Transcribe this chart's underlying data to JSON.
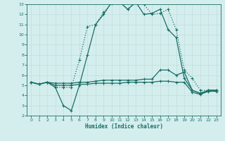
{
  "xlabel": "Humidex (Indice chaleur)",
  "bg_color": "#d4eeee",
  "line_color": "#1a6e64",
  "grid_color": "#b8d8d8",
  "xlim": [
    -0.5,
    23.5
  ],
  "ylim": [
    2,
    13
  ],
  "xticks": [
    0,
    1,
    2,
    3,
    4,
    5,
    6,
    7,
    8,
    9,
    10,
    11,
    12,
    13,
    14,
    15,
    16,
    17,
    18,
    19,
    20,
    21,
    22,
    23
  ],
  "yticks": [
    2,
    3,
    4,
    5,
    6,
    7,
    8,
    9,
    10,
    11,
    12,
    13
  ],
  "series": [
    {
      "x": [
        0,
        1,
        2,
        3,
        4,
        5,
        6,
        7,
        8,
        9,
        10,
        11,
        12,
        13,
        14,
        15,
        16,
        17,
        18,
        19,
        20,
        21,
        22,
        23
      ],
      "y": [
        5.3,
        5.1,
        5.3,
        4.8,
        4.8,
        4.8,
        7.5,
        10.8,
        11.0,
        12.2,
        13.1,
        13.2,
        12.5,
        13.2,
        13.0,
        12.0,
        12.1,
        12.5,
        10.5,
        6.5,
        5.7,
        4.5,
        4.5,
        4.5
      ],
      "style": ":",
      "marker": "+",
      "markersize": 3,
      "linewidth": 0.9
    },
    {
      "x": [
        0,
        1,
        2,
        3,
        4,
        5,
        6,
        7,
        8,
        9,
        10,
        11,
        12,
        13,
        14,
        15,
        16,
        17,
        18,
        19,
        20,
        21,
        22,
        23
      ],
      "y": [
        5.3,
        5.1,
        5.3,
        4.8,
        3.0,
        2.5,
        5.0,
        8.0,
        11.0,
        12.0,
        13.2,
        13.2,
        12.5,
        13.2,
        12.0,
        12.1,
        12.5,
        10.5,
        9.7,
        5.7,
        4.5,
        4.2,
        4.5,
        4.5
      ],
      "style": "-",
      "marker": "+",
      "markersize": 3,
      "linewidth": 0.9
    },
    {
      "x": [
        0,
        1,
        2,
        3,
        4,
        5,
        6,
        7,
        8,
        9,
        10,
        11,
        12,
        13,
        14,
        15,
        16,
        17,
        18,
        19,
        20,
        21,
        22,
        23
      ],
      "y": [
        5.3,
        5.1,
        5.3,
        5.2,
        5.2,
        5.2,
        5.3,
        5.3,
        5.4,
        5.5,
        5.5,
        5.5,
        5.5,
        5.5,
        5.6,
        5.6,
        6.5,
        6.5,
        6.0,
        6.3,
        4.5,
        4.2,
        4.5,
        4.5
      ],
      "style": "-",
      "marker": "+",
      "markersize": 3,
      "linewidth": 0.9
    },
    {
      "x": [
        0,
        1,
        2,
        3,
        4,
        5,
        6,
        7,
        8,
        9,
        10,
        11,
        12,
        13,
        14,
        15,
        16,
        17,
        18,
        19,
        20,
        21,
        22,
        23
      ],
      "y": [
        5.3,
        5.1,
        5.3,
        5.0,
        5.0,
        5.0,
        5.1,
        5.1,
        5.2,
        5.2,
        5.2,
        5.2,
        5.3,
        5.3,
        5.3,
        5.3,
        5.4,
        5.4,
        5.3,
        5.3,
        4.3,
        4.1,
        4.4,
        4.4
      ],
      "style": "-",
      "marker": "+",
      "markersize": 3,
      "linewidth": 0.9
    }
  ]
}
